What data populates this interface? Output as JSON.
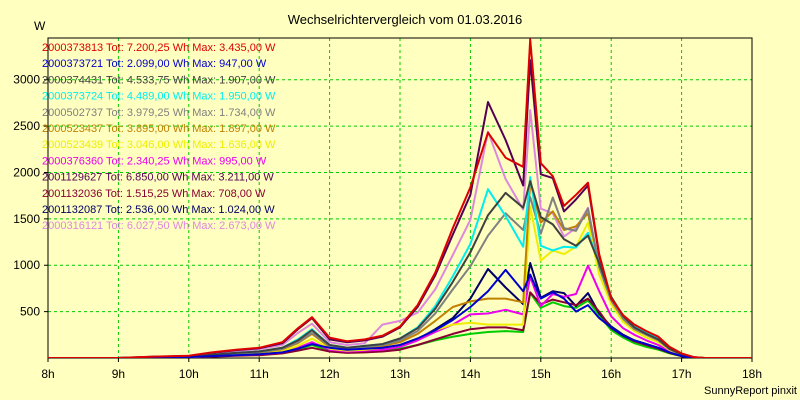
{
  "chart_data": {
    "type": "line",
    "title": "Wechselrichtervergleich vom 01.03.2016",
    "ylabel": "W",
    "xlabel": "",
    "footer": "SunnyReport pinxit",
    "x_ticks": [
      "8h",
      "9h",
      "10h",
      "11h",
      "12h",
      "13h",
      "14h",
      "15h",
      "16h",
      "17h",
      "18h"
    ],
    "y_ticks": [
      500,
      1000,
      1500,
      2000,
      2500,
      3000
    ],
    "xlim": [
      8,
      18
    ],
    "ylim": [
      0,
      3450
    ],
    "grid": true,
    "legend_position": "top-left",
    "x": [
      7.97,
      8.5,
      9.0,
      9.5,
      10.0,
      10.33,
      10.67,
      11.0,
      11.33,
      11.55,
      11.75,
      12.0,
      12.25,
      12.5,
      12.75,
      13.0,
      13.25,
      13.5,
      13.75,
      14.0,
      14.25,
      14.5,
      14.75,
      14.85,
      15.0,
      15.17,
      15.33,
      15.5,
      15.67,
      15.83,
      16.0,
      16.17,
      16.33,
      16.5,
      16.67,
      16.83,
      17.0,
      17.17,
      17.33,
      17.5,
      17.75,
      18.0
    ],
    "series": [
      {
        "name": "2000373813 Tot: 7.200,25 Wh Max: 3.435,00 W",
        "color": "#dd0000",
        "values": [
          0,
          0,
          0,
          15,
          25,
          60,
          90,
          110,
          170,
          320,
          440,
          220,
          180,
          200,
          240,
          340,
          570,
          920,
          1400,
          1840,
          2430,
          2160,
          2060,
          3435,
          2100,
          1960,
          1640,
          1760,
          1890,
          1120,
          640,
          460,
          360,
          290,
          230,
          120,
          50,
          10,
          0,
          0,
          0,
          0
        ]
      },
      {
        "name": "2000373721 Tot: 2.099,00 Wh Max: 947,00 W",
        "color": "#0000cc",
        "values": [
          0,
          0,
          0,
          5,
          10,
          20,
          30,
          40,
          60,
          100,
          150,
          110,
          90,
          100,
          110,
          140,
          210,
          300,
          410,
          550,
          720,
          950,
          720,
          900,
          640,
          710,
          640,
          500,
          570,
          430,
          330,
          240,
          190,
          150,
          110,
          60,
          20,
          0,
          0,
          0,
          0,
          0
        ]
      },
      {
        "name": "2000374431 Tot: 4.533,75 Wh Max: 1.907,00 W",
        "color": "#404040",
        "values": [
          0,
          0,
          0,
          8,
          15,
          35,
          55,
          70,
          110,
          190,
          300,
          140,
          110,
          130,
          150,
          210,
          320,
          530,
          820,
          1140,
          1540,
          1780,
          1620,
          1907,
          1520,
          1440,
          1280,
          1210,
          1320,
          1020,
          660,
          450,
          330,
          260,
          200,
          100,
          40,
          5,
          0,
          0,
          0,
          0
        ]
      },
      {
        "name": "2000373724 Tot: 4.489,00 Wh Max: 1.950,00 W",
        "color": "#00eeee",
        "values": [
          0,
          0,
          0,
          8,
          15,
          35,
          55,
          70,
          110,
          200,
          310,
          140,
          110,
          130,
          150,
          210,
          330,
          560,
          880,
          1230,
          1820,
          1530,
          1200,
          1950,
          1210,
          1160,
          1200,
          1190,
          1350,
          1020,
          650,
          460,
          340,
          270,
          210,
          110,
          40,
          5,
          0,
          0,
          0,
          0
        ]
      },
      {
        "name": "2000502737 Tot: 3.979,25 Wh Max: 1.734,00 W",
        "color": "#808080",
        "values": [
          0,
          0,
          0,
          7,
          14,
          30,
          50,
          65,
          100,
          170,
          270,
          130,
          100,
          120,
          140,
          190,
          290,
          480,
          740,
          990,
          1320,
          1560,
          1380,
          1734,
          1340,
          1730,
          1400,
          1370,
          1610,
          980,
          620,
          420,
          310,
          250,
          190,
          95,
          35,
          5,
          0,
          0,
          0,
          0
        ]
      },
      {
        "name": "2000523437 Tot: 3.895,00 Wh Max: 1.897,00 W",
        "color": "#c08000",
        "values": [
          0,
          0,
          0,
          6,
          12,
          28,
          45,
          60,
          95,
          160,
          260,
          120,
          95,
          110,
          130,
          170,
          260,
          400,
          550,
          610,
          640,
          640,
          600,
          1897,
          1460,
          1580,
          1380,
          1420,
          1560,
          1000,
          640,
          430,
          320,
          250,
          190,
          95,
          35,
          5,
          0,
          0,
          0,
          0
        ]
      },
      {
        "name": "2000523439 Tot: 3.046,00 Wh Max: 1.636,00 W",
        "color": "#eeee00",
        "values": [
          0,
          0,
          0,
          5,
          10,
          22,
          35,
          45,
          75,
          130,
          210,
          100,
          80,
          90,
          110,
          140,
          210,
          300,
          360,
          380,
          360,
          360,
          360,
          1636,
          1050,
          1160,
          1120,
          1200,
          1460,
          900,
          580,
          390,
          290,
          220,
          170,
          85,
          30,
          5,
          0,
          0,
          0,
          0
        ]
      },
      {
        "name": "2000376360 Tot: 2.340,25 Wh Max: 995,00 W",
        "color": "#ee00ee",
        "values": [
          0,
          0,
          0,
          5,
          10,
          20,
          30,
          40,
          60,
          110,
          170,
          90,
          70,
          80,
          90,
          120,
          190,
          280,
          360,
          470,
          480,
          520,
          470,
          880,
          560,
          690,
          660,
          690,
          995,
          720,
          450,
          320,
          250,
          190,
          140,
          70,
          25,
          0,
          0,
          0,
          0,
          0
        ]
      },
      {
        "name": "2001129627 Tot: 6.850,00 Wh Max: 3.211,00 W",
        "color": "#550055",
        "values": [
          0,
          0,
          0,
          14,
          22,
          55,
          85,
          105,
          160,
          310,
          430,
          200,
          170,
          190,
          230,
          330,
          550,
          890,
          1330,
          1760,
          2760,
          2350,
          1860,
          3211,
          1980,
          1940,
          1580,
          1710,
          1860,
          1100,
          620,
          440,
          350,
          280,
          220,
          115,
          45,
          10,
          0,
          0,
          0,
          0
        ]
      },
      {
        "name": "2001132036 Tot: 1.515,25 Wh Max: 708,00 W",
        "color": "#880033",
        "values": [
          0,
          0,
          0,
          3,
          8,
          15,
          25,
          30,
          50,
          80,
          110,
          70,
          55,
          60,
          70,
          90,
          140,
          200,
          260,
          310,
          330,
          330,
          300,
          708,
          580,
          630,
          600,
          570,
          640,
          500,
          320,
          240,
          180,
          140,
          100,
          55,
          20,
          0,
          0,
          0,
          0,
          0
        ]
      },
      {
        "name": "2001132087 Tot: 2.536,00 Wh Max: 1.024,00 W",
        "color": "#000066",
        "values": [
          0,
          0,
          0,
          5,
          10,
          20,
          32,
          42,
          65,
          110,
          160,
          100,
          80,
          90,
          100,
          130,
          200,
          310,
          430,
          640,
          960,
          760,
          580,
          1024,
          650,
          720,
          700,
          560,
          700,
          480,
          340,
          250,
          190,
          150,
          110,
          60,
          20,
          0,
          0,
          0,
          0,
          0
        ]
      },
      {
        "name": "2000316121 Tot: 6.027,50 Wh Max: 2.673,00 W",
        "color": "#dd88dd",
        "values": [
          0,
          0,
          0,
          12,
          20,
          50,
          75,
          95,
          140,
          270,
          370,
          170,
          140,
          160,
          360,
          400,
          490,
          740,
          1110,
          1490,
          2440,
          1930,
          1600,
          2673,
          1610,
          1560,
          1310,
          1400,
          1620,
          980,
          610,
          430,
          330,
          260,
          210,
          105,
          40,
          5,
          0,
          0,
          0,
          0
        ]
      },
      {
        "name": "",
        "color": "#00cc00",
        "values": [
          0,
          0,
          0,
          4,
          8,
          18,
          28,
          35,
          55,
          90,
          140,
          80,
          60,
          70,
          80,
          100,
          140,
          190,
          230,
          260,
          280,
          290,
          280,
          700,
          540,
          600,
          560,
          540,
          620,
          460,
          300,
          220,
          160,
          120,
          90,
          50,
          20,
          0,
          0,
          0,
          0,
          0
        ]
      }
    ]
  }
}
